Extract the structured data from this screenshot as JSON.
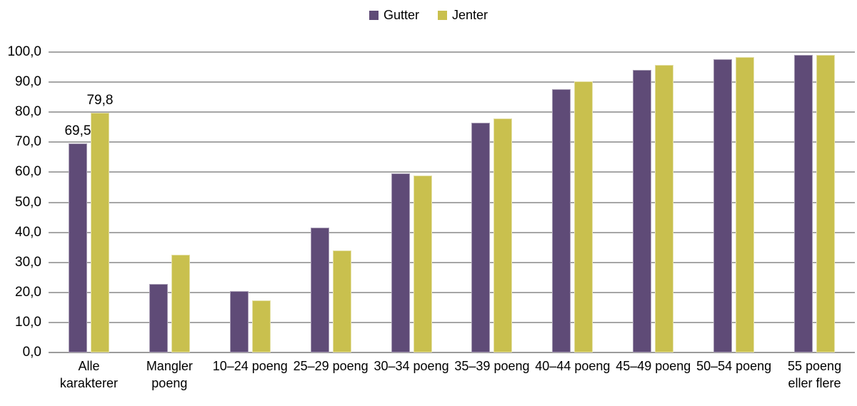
{
  "chart_data": {
    "type": "bar",
    "title": "",
    "xlabel": "",
    "ylabel": "",
    "categories": [
      "Alle karakterer",
      "Mangler poeng",
      "10–24 poeng",
      "25–29 poeng",
      "30–34 poeng",
      "35–39 poeng",
      "40–44 poeng",
      "45–49 poeng",
      "50–54 poeng",
      "55 poeng eller flere"
    ],
    "series": [
      {
        "name": "Gutter",
        "color": "#5f4b77",
        "values": [
          69.5,
          22.9,
          20.4,
          41.5,
          59.7,
          76.5,
          87.7,
          94.0,
          97.7,
          99.0
        ]
      },
      {
        "name": "Jenter",
        "color": "#c9c04e",
        "values": [
          79.8,
          32.6,
          17.3,
          34.0,
          59.0,
          77.8,
          90.2,
          95.8,
          98.3,
          99.0
        ]
      }
    ],
    "ylim": [
      0,
      100
    ],
    "ytick_step": 10,
    "ytick_labels": [
      "0,0",
      "10,0",
      "20,0",
      "30,0",
      "40,0",
      "50,0",
      "60,0",
      "70,0",
      "80,0",
      "90,0",
      "100,0"
    ],
    "grid": true,
    "gridline_color": "#a6a6a6",
    "legend_position": "top-center",
    "annotations": [
      {
        "series": 0,
        "index": 0,
        "text": "69,5"
      },
      {
        "series": 1,
        "index": 0,
        "text": "79,8"
      }
    ]
  }
}
